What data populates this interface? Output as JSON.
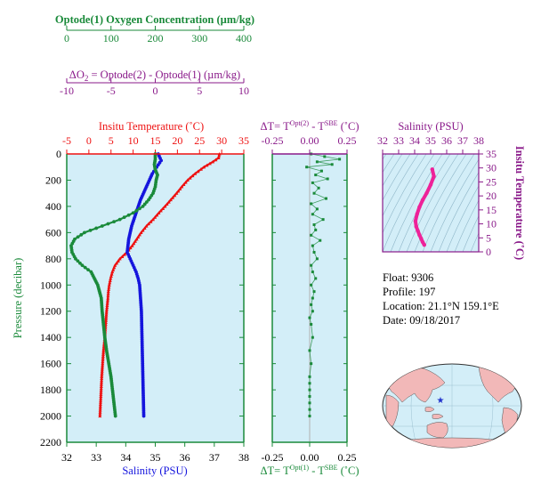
{
  "colors": {
    "oxygen": "#1a8a3a",
    "delta_o2": "#8a1a8a",
    "temperature": "#ee1111",
    "salinity": "#1515dd",
    "pressure_axis": "#1a8a3a",
    "panel_fill": "#d3eef8",
    "salinity_ts": "#ee2299",
    "map_land": "#f2b8b8",
    "map_ocean": "#d3eef8",
    "float_marker": "#2233cc"
  },
  "chart_data": [
    {
      "type": "line",
      "name": "profiles",
      "xlabel": "Insitu Temperature (°C)",
      "ylabel": "Pressure (decibar)",
      "ylim": [
        2200,
        0
      ],
      "grid": false,
      "axes": {
        "oxygen": {
          "title": "Optode(1) Oxygen Concentration (µm/kg)",
          "range": [
            0,
            400
          ],
          "ticks": [
            "0",
            "100",
            "200",
            "300",
            "400"
          ]
        },
        "delta_o2": {
          "title_prefix": "ΔO",
          "title_sub": "2",
          "title_rest": " = Optode(2) - Optode(1)   (µm/kg)",
          "range": [
            -10,
            10
          ],
          "ticks": [
            "-10",
            "-5",
            "0",
            "5",
            "10"
          ]
        },
        "temperature": {
          "title": "Insitu Temperature (˚C)",
          "range": [
            -5,
            35
          ],
          "ticks": [
            "-5",
            "0",
            "5",
            "10",
            "15",
            "20",
            "25",
            "30",
            "35"
          ]
        },
        "salinity": {
          "title": "Salinity (PSU)",
          "range": [
            32,
            38
          ],
          "ticks": [
            "32",
            "33",
            "34",
            "35",
            "36",
            "37",
            "38"
          ]
        },
        "pressure": {
          "title": "Pressure (decibar)",
          "ticks": [
            "0",
            "200",
            "400",
            "600",
            "800",
            "1000",
            "1200",
            "1400",
            "1600",
            "1800",
            "2000",
            "2200"
          ]
        }
      },
      "series": [
        {
          "name": "Insitu Temperature",
          "axis": "temperature",
          "x": [
            29.5,
            29.3,
            28.0,
            26.0,
            24.0,
            22.3,
            21.0,
            19.8,
            18.5,
            17.2,
            15.8,
            14.5,
            13.0,
            11.8,
            10.8,
            9.8,
            8.6,
            7.0,
            5.9,
            5.3,
            4.9,
            4.6,
            4.4,
            4.3,
            4.0,
            3.8,
            3.6,
            3.3,
            3.1,
            2.9,
            2.7,
            2.5
          ],
          "y": [
            0,
            30,
            60,
            100,
            150,
            200,
            250,
            300,
            350,
            400,
            450,
            500,
            550,
            600,
            650,
            700,
            750,
            800,
            850,
            900,
            950,
            1000,
            1050,
            1100,
            1200,
            1300,
            1400,
            1500,
            1600,
            1700,
            1850,
            2000
          ]
        },
        {
          "name": "Salinity",
          "axis": "salinity",
          "x": [
            35.1,
            35.2,
            35.05,
            34.9,
            34.7,
            34.5,
            34.35,
            34.2,
            34.1,
            34.05,
            34.15,
            34.25,
            34.35,
            34.42,
            34.47,
            34.5,
            34.53,
            34.55,
            34.57,
            34.59,
            34.6,
            34.61
          ],
          "y": [
            0,
            50,
            100,
            150,
            250,
            350,
            450,
            550,
            650,
            750,
            800,
            850,
            900,
            950,
            1000,
            1100,
            1200,
            1400,
            1600,
            1800,
            1900,
            2000
          ]
        },
        {
          "name": "Optode(1) Oxygen Concentration",
          "axis": "oxygen",
          "x": [
            200,
            200,
            198,
            200,
            205,
            202,
            200,
            195,
            185,
            172,
            150,
            120,
            80,
            40,
            18,
            10,
            12,
            20,
            35,
            55,
            70,
            78,
            80,
            83,
            86,
            90,
            95,
            100,
            105,
            110
          ],
          "y": [
            0,
            40,
            80,
            120,
            160,
            200,
            250,
            300,
            350,
            400,
            450,
            500,
            550,
            600,
            650,
            700,
            750,
            800,
            850,
            900,
            1000,
            1100,
            1200,
            1300,
            1400,
            1500,
            1600,
            1700,
            1850,
            2000
          ]
        }
      ]
    },
    {
      "type": "scatter",
      "name": "delta_t",
      "title": "ΔT= T^{Opt(2)} - T^{SBE} (˚C)",
      "title_parts": [
        "ΔT= T",
        "Opt(2)",
        " - T",
        "SBE",
        " (˚C)"
      ],
      "xlabel_parts": [
        "ΔT= T",
        "Opt(1)",
        " - T",
        "SBE",
        " (˚C)"
      ],
      "xlim": [
        -0.25,
        0.25
      ],
      "top_ticks": [
        "-0.25",
        "0.00",
        "0.25"
      ],
      "bottom_ticks": [
        "-0.25",
        "0.00",
        "0.25"
      ],
      "ylim": [
        2200,
        0
      ],
      "x": [
        0.01,
        0.1,
        0.2,
        0.05,
        0.15,
        -0.02,
        0.08,
        0.04,
        0.12,
        0.02,
        0.06,
        0.03,
        0.11,
        0.01,
        0.05,
        0.02,
        0.09,
        0.03,
        0.04,
        0.01,
        0.07,
        0.02,
        0.03,
        0.05,
        0.01,
        0.02,
        0.04,
        0.01,
        0.03,
        0.02,
        0.01,
        0.02,
        0.0,
        0.01,
        0.02,
        0.0,
        0.01,
        0.0,
        0.0,
        0.0,
        0.0,
        0.0,
        0.0,
        0.0
      ],
      "y": [
        0,
        20,
        40,
        60,
        80,
        100,
        130,
        160,
        190,
        220,
        260,
        300,
        340,
        380,
        420,
        460,
        500,
        540,
        580,
        620,
        660,
        700,
        750,
        800,
        850,
        900,
        950,
        1000,
        1050,
        1100,
        1150,
        1200,
        1250,
        1300,
        1400,
        1500,
        1600,
        1700,
        1750,
        1800,
        1850,
        1900,
        1950,
        2000
      ]
    },
    {
      "type": "line",
      "name": "ts_diagram",
      "title": "Salinity (PSU)",
      "ylabel": "Insitu Temperature (˚C)",
      "xlim": [
        32,
        38
      ],
      "ylim": [
        0,
        35
      ],
      "x_ticks": [
        "32",
        "33",
        "34",
        "35",
        "36",
        "37",
        "38"
      ],
      "y_ticks": [
        "0",
        "5",
        "10",
        "15",
        "20",
        "25",
        "30",
        "35"
      ],
      "x": [
        35.1,
        35.2,
        35.0,
        34.75,
        34.5,
        34.3,
        34.15,
        34.05,
        34.1,
        34.2,
        34.3,
        34.4,
        34.5,
        34.6
      ],
      "y": [
        29.5,
        27.0,
        24.0,
        21.0,
        18.5,
        16.0,
        13.5,
        11.0,
        9.0,
        7.5,
        6.0,
        4.8,
        3.5,
        2.5
      ]
    }
  ],
  "float_info": {
    "float": "Float:  9306",
    "profile": "Profile:  197",
    "location": "Location:  21.1°N  159.1°E",
    "date": "Date:  09/18/2017"
  },
  "map": {
    "marker_icon": "star-icon"
  }
}
